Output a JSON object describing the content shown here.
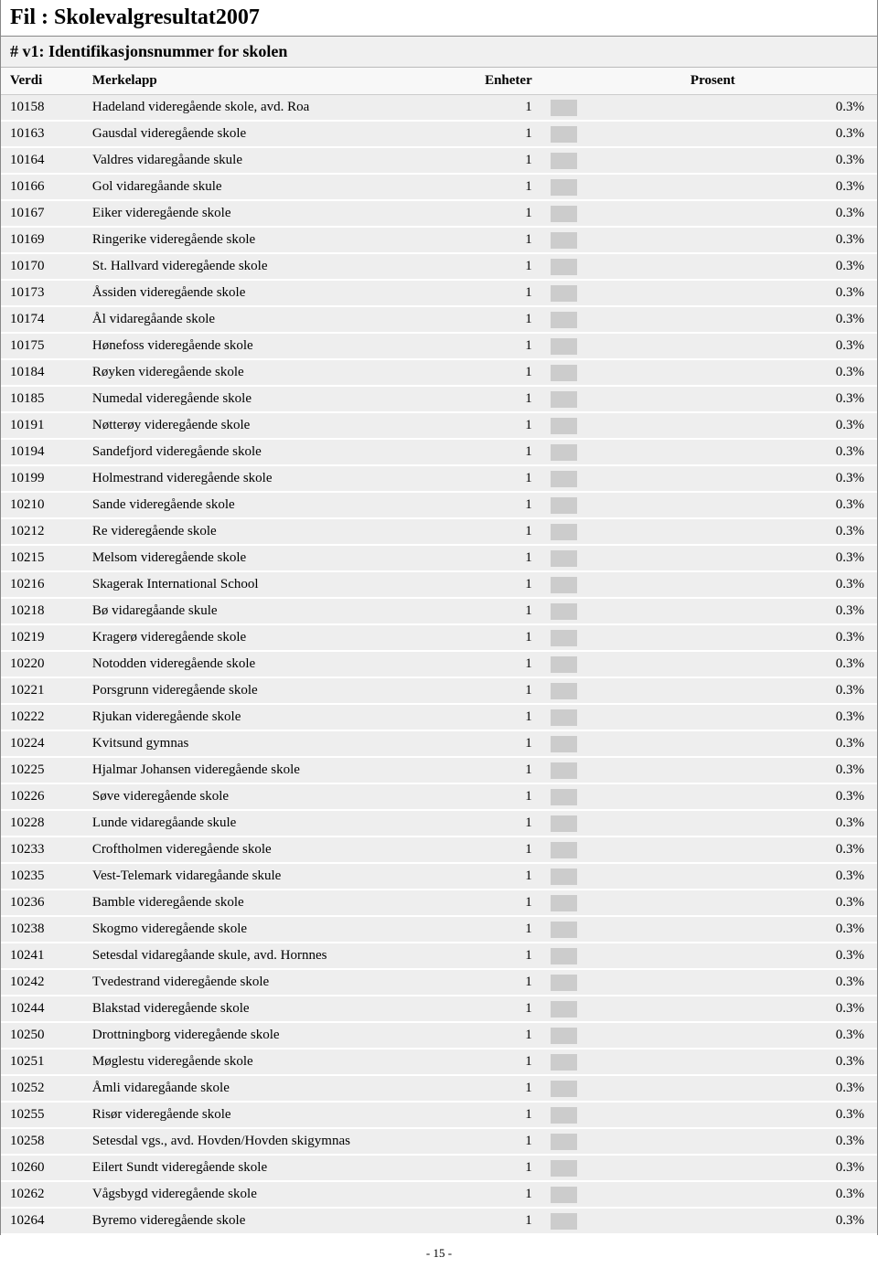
{
  "header": {
    "title": "Fil : Skolevalgresultat2007",
    "subtitle": "# v1: Identifikasjonsnummer for skolen"
  },
  "columns": {
    "verdi": "Verdi",
    "merkelapp": "Merkelapp",
    "enheter": "Enheter",
    "prosent": "Prosent"
  },
  "bar_max_pct": 3.0,
  "colors": {
    "row_bg": "#eeeeee",
    "bar_fill": "#cccccc",
    "page_bg": "#ffffff",
    "text": "#000000"
  },
  "rows": [
    {
      "verdi": "10158",
      "merkelapp": "Hadeland videregående skole, avd. Roa",
      "enheter": "1",
      "pct": "0.3%",
      "pct_num": 0.3
    },
    {
      "verdi": "10163",
      "merkelapp": "Gausdal videregående skole",
      "enheter": "1",
      "pct": "0.3%",
      "pct_num": 0.3
    },
    {
      "verdi": "10164",
      "merkelapp": "Valdres vidaregåande skule",
      "enheter": "1",
      "pct": "0.3%",
      "pct_num": 0.3
    },
    {
      "verdi": "10166",
      "merkelapp": "Gol vidaregåande skule",
      "enheter": "1",
      "pct": "0.3%",
      "pct_num": 0.3
    },
    {
      "verdi": "10167",
      "merkelapp": "Eiker videregående skole",
      "enheter": "1",
      "pct": "0.3%",
      "pct_num": 0.3
    },
    {
      "verdi": "10169",
      "merkelapp": "Ringerike videregående skole",
      "enheter": "1",
      "pct": "0.3%",
      "pct_num": 0.3
    },
    {
      "verdi": "10170",
      "merkelapp": "St. Hallvard videregående skole",
      "enheter": "1",
      "pct": "0.3%",
      "pct_num": 0.3
    },
    {
      "verdi": "10173",
      "merkelapp": "Åssiden videregående skole",
      "enheter": "1",
      "pct": "0.3%",
      "pct_num": 0.3
    },
    {
      "verdi": "10174",
      "merkelapp": "Ål vidaregåande skole",
      "enheter": "1",
      "pct": "0.3%",
      "pct_num": 0.3
    },
    {
      "verdi": "10175",
      "merkelapp": "Hønefoss videregående skole",
      "enheter": "1",
      "pct": "0.3%",
      "pct_num": 0.3
    },
    {
      "verdi": "10184",
      "merkelapp": "Røyken videregående skole",
      "enheter": "1",
      "pct": "0.3%",
      "pct_num": 0.3
    },
    {
      "verdi": "10185",
      "merkelapp": "Numedal videregående skole",
      "enheter": "1",
      "pct": "0.3%",
      "pct_num": 0.3
    },
    {
      "verdi": "10191",
      "merkelapp": "Nøtterøy videregående skole",
      "enheter": "1",
      "pct": "0.3%",
      "pct_num": 0.3
    },
    {
      "verdi": "10194",
      "merkelapp": "Sandefjord videregående skole",
      "enheter": "1",
      "pct": "0.3%",
      "pct_num": 0.3
    },
    {
      "verdi": "10199",
      "merkelapp": "Holmestrand videregående skole",
      "enheter": "1",
      "pct": "0.3%",
      "pct_num": 0.3
    },
    {
      "verdi": "10210",
      "merkelapp": "Sande videregående skole",
      "enheter": "1",
      "pct": "0.3%",
      "pct_num": 0.3
    },
    {
      "verdi": "10212",
      "merkelapp": "Re videregående skole",
      "enheter": "1",
      "pct": "0.3%",
      "pct_num": 0.3
    },
    {
      "verdi": "10215",
      "merkelapp": "Melsom videregående skole",
      "enheter": "1",
      "pct": "0.3%",
      "pct_num": 0.3
    },
    {
      "verdi": "10216",
      "merkelapp": "Skagerak International School",
      "enheter": "1",
      "pct": "0.3%",
      "pct_num": 0.3
    },
    {
      "verdi": "10218",
      "merkelapp": "Bø vidaregåande skule",
      "enheter": "1",
      "pct": "0.3%",
      "pct_num": 0.3
    },
    {
      "verdi": "10219",
      "merkelapp": "Kragerø videregående skole",
      "enheter": "1",
      "pct": "0.3%",
      "pct_num": 0.3
    },
    {
      "verdi": "10220",
      "merkelapp": "Notodden videregående skole",
      "enheter": "1",
      "pct": "0.3%",
      "pct_num": 0.3
    },
    {
      "verdi": "10221",
      "merkelapp": "Porsgrunn videregående skole",
      "enheter": "1",
      "pct": "0.3%",
      "pct_num": 0.3
    },
    {
      "verdi": "10222",
      "merkelapp": "Rjukan videregående skole",
      "enheter": "1",
      "pct": "0.3%",
      "pct_num": 0.3
    },
    {
      "verdi": "10224",
      "merkelapp": "Kvitsund gymnas",
      "enheter": "1",
      "pct": "0.3%",
      "pct_num": 0.3
    },
    {
      "verdi": "10225",
      "merkelapp": "Hjalmar Johansen videregående skole",
      "enheter": "1",
      "pct": "0.3%",
      "pct_num": 0.3
    },
    {
      "verdi": "10226",
      "merkelapp": "Søve videregående skole",
      "enheter": "1",
      "pct": "0.3%",
      "pct_num": 0.3
    },
    {
      "verdi": "10228",
      "merkelapp": "Lunde vidaregåande skule",
      "enheter": "1",
      "pct": "0.3%",
      "pct_num": 0.3
    },
    {
      "verdi": "10233",
      "merkelapp": "Croftholmen videregående skole",
      "enheter": "1",
      "pct": "0.3%",
      "pct_num": 0.3
    },
    {
      "verdi": "10235",
      "merkelapp": "Vest-Telemark vidaregåande skule",
      "enheter": "1",
      "pct": "0.3%",
      "pct_num": 0.3
    },
    {
      "verdi": "10236",
      "merkelapp": "Bamble videregående skole",
      "enheter": "1",
      "pct": "0.3%",
      "pct_num": 0.3
    },
    {
      "verdi": "10238",
      "merkelapp": "Skogmo videregående skole",
      "enheter": "1",
      "pct": "0.3%",
      "pct_num": 0.3
    },
    {
      "verdi": "10241",
      "merkelapp": "Setesdal vidaregåande skule, avd. Hornnes",
      "enheter": "1",
      "pct": "0.3%",
      "pct_num": 0.3
    },
    {
      "verdi": "10242",
      "merkelapp": "Tvedestrand videregående skole",
      "enheter": "1",
      "pct": "0.3%",
      "pct_num": 0.3
    },
    {
      "verdi": "10244",
      "merkelapp": "Blakstad videregående skole",
      "enheter": "1",
      "pct": "0.3%",
      "pct_num": 0.3
    },
    {
      "verdi": "10250",
      "merkelapp": "Drottningborg videregående skole",
      "enheter": "1",
      "pct": "0.3%",
      "pct_num": 0.3
    },
    {
      "verdi": "10251",
      "merkelapp": "Møglestu videregående skole",
      "enheter": "1",
      "pct": "0.3%",
      "pct_num": 0.3
    },
    {
      "verdi": "10252",
      "merkelapp": "Åmli vidaregåande skole",
      "enheter": "1",
      "pct": "0.3%",
      "pct_num": 0.3
    },
    {
      "verdi": "10255",
      "merkelapp": "Risør videregående skole",
      "enheter": "1",
      "pct": "0.3%",
      "pct_num": 0.3
    },
    {
      "verdi": "10258",
      "merkelapp": "Setesdal vgs., avd. Hovden/Hovden skigymnas",
      "enheter": "1",
      "pct": "0.3%",
      "pct_num": 0.3
    },
    {
      "verdi": "10260",
      "merkelapp": "Eilert Sundt videregående skole",
      "enheter": "1",
      "pct": "0.3%",
      "pct_num": 0.3
    },
    {
      "verdi": "10262",
      "merkelapp": "Vågsbygd videregående skole",
      "enheter": "1",
      "pct": "0.3%",
      "pct_num": 0.3
    },
    {
      "verdi": "10264",
      "merkelapp": "Byremo videregående skole",
      "enheter": "1",
      "pct": "0.3%",
      "pct_num": 0.3
    }
  ],
  "footer": {
    "page": "- 15 -"
  }
}
